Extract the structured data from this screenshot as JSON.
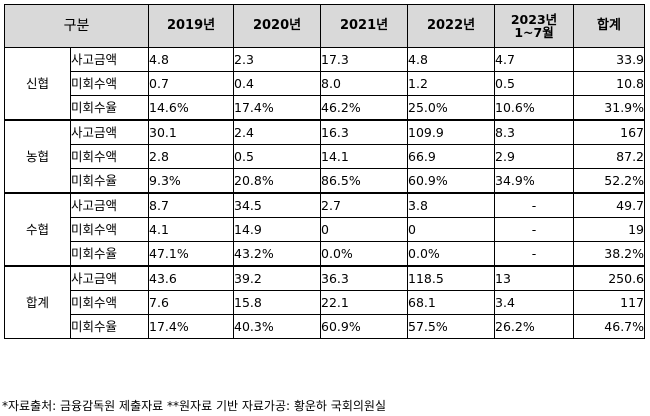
{
  "table": {
    "corner": "구분",
    "columns": [
      "2019년",
      "2020년",
      "2021년",
      "2022년",
      "2023년\n1~7월",
      "합계"
    ],
    "groups": [
      {
        "name": "신협",
        "rows": [
          {
            "metric": "사고금액",
            "values": [
              "4.8",
              "2.3",
              "17.3",
              "4.8",
              "4.7",
              "33.9"
            ]
          },
          {
            "metric": "미회수액",
            "values": [
              "0.7",
              "0.4",
              "8.0",
              "1.2",
              "0.5",
              "10.8"
            ]
          },
          {
            "metric": "미회수율",
            "values": [
              "14.6%",
              "17.4%",
              "46.2%",
              "25.0%",
              "10.6%",
              "31.9%"
            ]
          }
        ]
      },
      {
        "name": "농협",
        "rows": [
          {
            "metric": "사고금액",
            "values": [
              "30.1",
              "2.4",
              "16.3",
              "109.9",
              "8.3",
              "167"
            ]
          },
          {
            "metric": "미회수액",
            "values": [
              "2.8",
              "0.5",
              "14.1",
              "66.9",
              "2.9",
              "87.2"
            ]
          },
          {
            "metric": "미회수율",
            "values": [
              "9.3%",
              "20.8%",
              "86.5%",
              "60.9%",
              "34.9%",
              "52.2%"
            ]
          }
        ]
      },
      {
        "name": "수협",
        "rows": [
          {
            "metric": "사고금액",
            "values": [
              "8.7",
              "34.5",
              "2.7",
              "3.8",
              "-",
              "49.7"
            ]
          },
          {
            "metric": "미회수액",
            "values": [
              "4.1",
              "14.9",
              "0",
              "0",
              "-",
              "19"
            ]
          },
          {
            "metric": "미회수율",
            "values": [
              "47.1%",
              "43.2%",
              "0.0%",
              "0.0%",
              "-",
              "38.2%"
            ]
          }
        ]
      },
      {
        "name": "합계",
        "rows": [
          {
            "metric": "사고금액",
            "values": [
              "43.6",
              "39.2",
              "36.3",
              "118.5",
              "13",
              "250.6"
            ]
          },
          {
            "metric": "미회수액",
            "values": [
              "7.6",
              "15.8",
              "22.1",
              "68.1",
              "3.4",
              "117"
            ]
          },
          {
            "metric": "미회수율",
            "values": [
              "17.4%",
              "40.3%",
              "60.9%",
              "57.5%",
              "26.2%",
              "46.7%"
            ]
          }
        ]
      }
    ]
  },
  "footnote": "*자료출처: 금융감독원 제출자료 **원자료 기반 자료가공: 황운하 국회의원실"
}
